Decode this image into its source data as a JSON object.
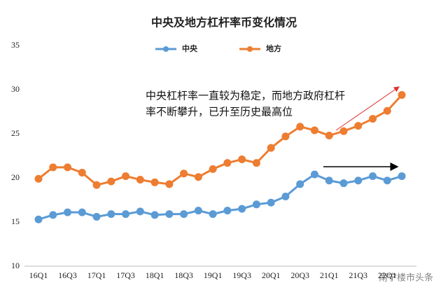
{
  "chart_data": {
    "type": "line",
    "title": "中央及地方杠杆率币变化情况",
    "categories": [
      "16Q1",
      null,
      "16Q3",
      null,
      "17Q1",
      null,
      "17Q3",
      null,
      "18Q1",
      null,
      "18Q3",
      null,
      "19Q1",
      null,
      "19Q3",
      null,
      "20Q1",
      null,
      "20Q3",
      null,
      "21Q1",
      null,
      "21Q3",
      null,
      "22Q1",
      null
    ],
    "series": [
      {
        "name": "中央",
        "color": "#5b9bd5",
        "values": [
          15.3,
          15.8,
          16.1,
          16.1,
          15.6,
          15.9,
          15.9,
          16.2,
          15.8,
          15.9,
          15.9,
          16.3,
          15.9,
          16.3,
          16.5,
          17.0,
          17.2,
          17.9,
          19.3,
          20.4,
          19.7,
          19.4,
          19.7,
          20.2,
          19.7,
          20.2
        ]
      },
      {
        "name": "地方",
        "color": "#ed7d31",
        "values": [
          19.9,
          21.2,
          21.2,
          20.6,
          19.2,
          19.6,
          20.2,
          19.8,
          19.5,
          19.3,
          20.5,
          20.1,
          21.0,
          21.7,
          22.1,
          21.7,
          23.4,
          24.7,
          25.8,
          25.4,
          24.8,
          25.3,
          25.9,
          26.7,
          27.6,
          29.4
        ]
      }
    ],
    "ylim": [
      10,
      35
    ],
    "yticks": [
      10,
      15,
      20,
      25,
      30,
      35
    ],
    "grid": false,
    "annotation": [
      "中央杠杆率一直较为稳定，而地方政府杠杆",
      "率不断攀升，已升至历史最高位"
    ],
    "watermark": "南宁楼市头条"
  }
}
